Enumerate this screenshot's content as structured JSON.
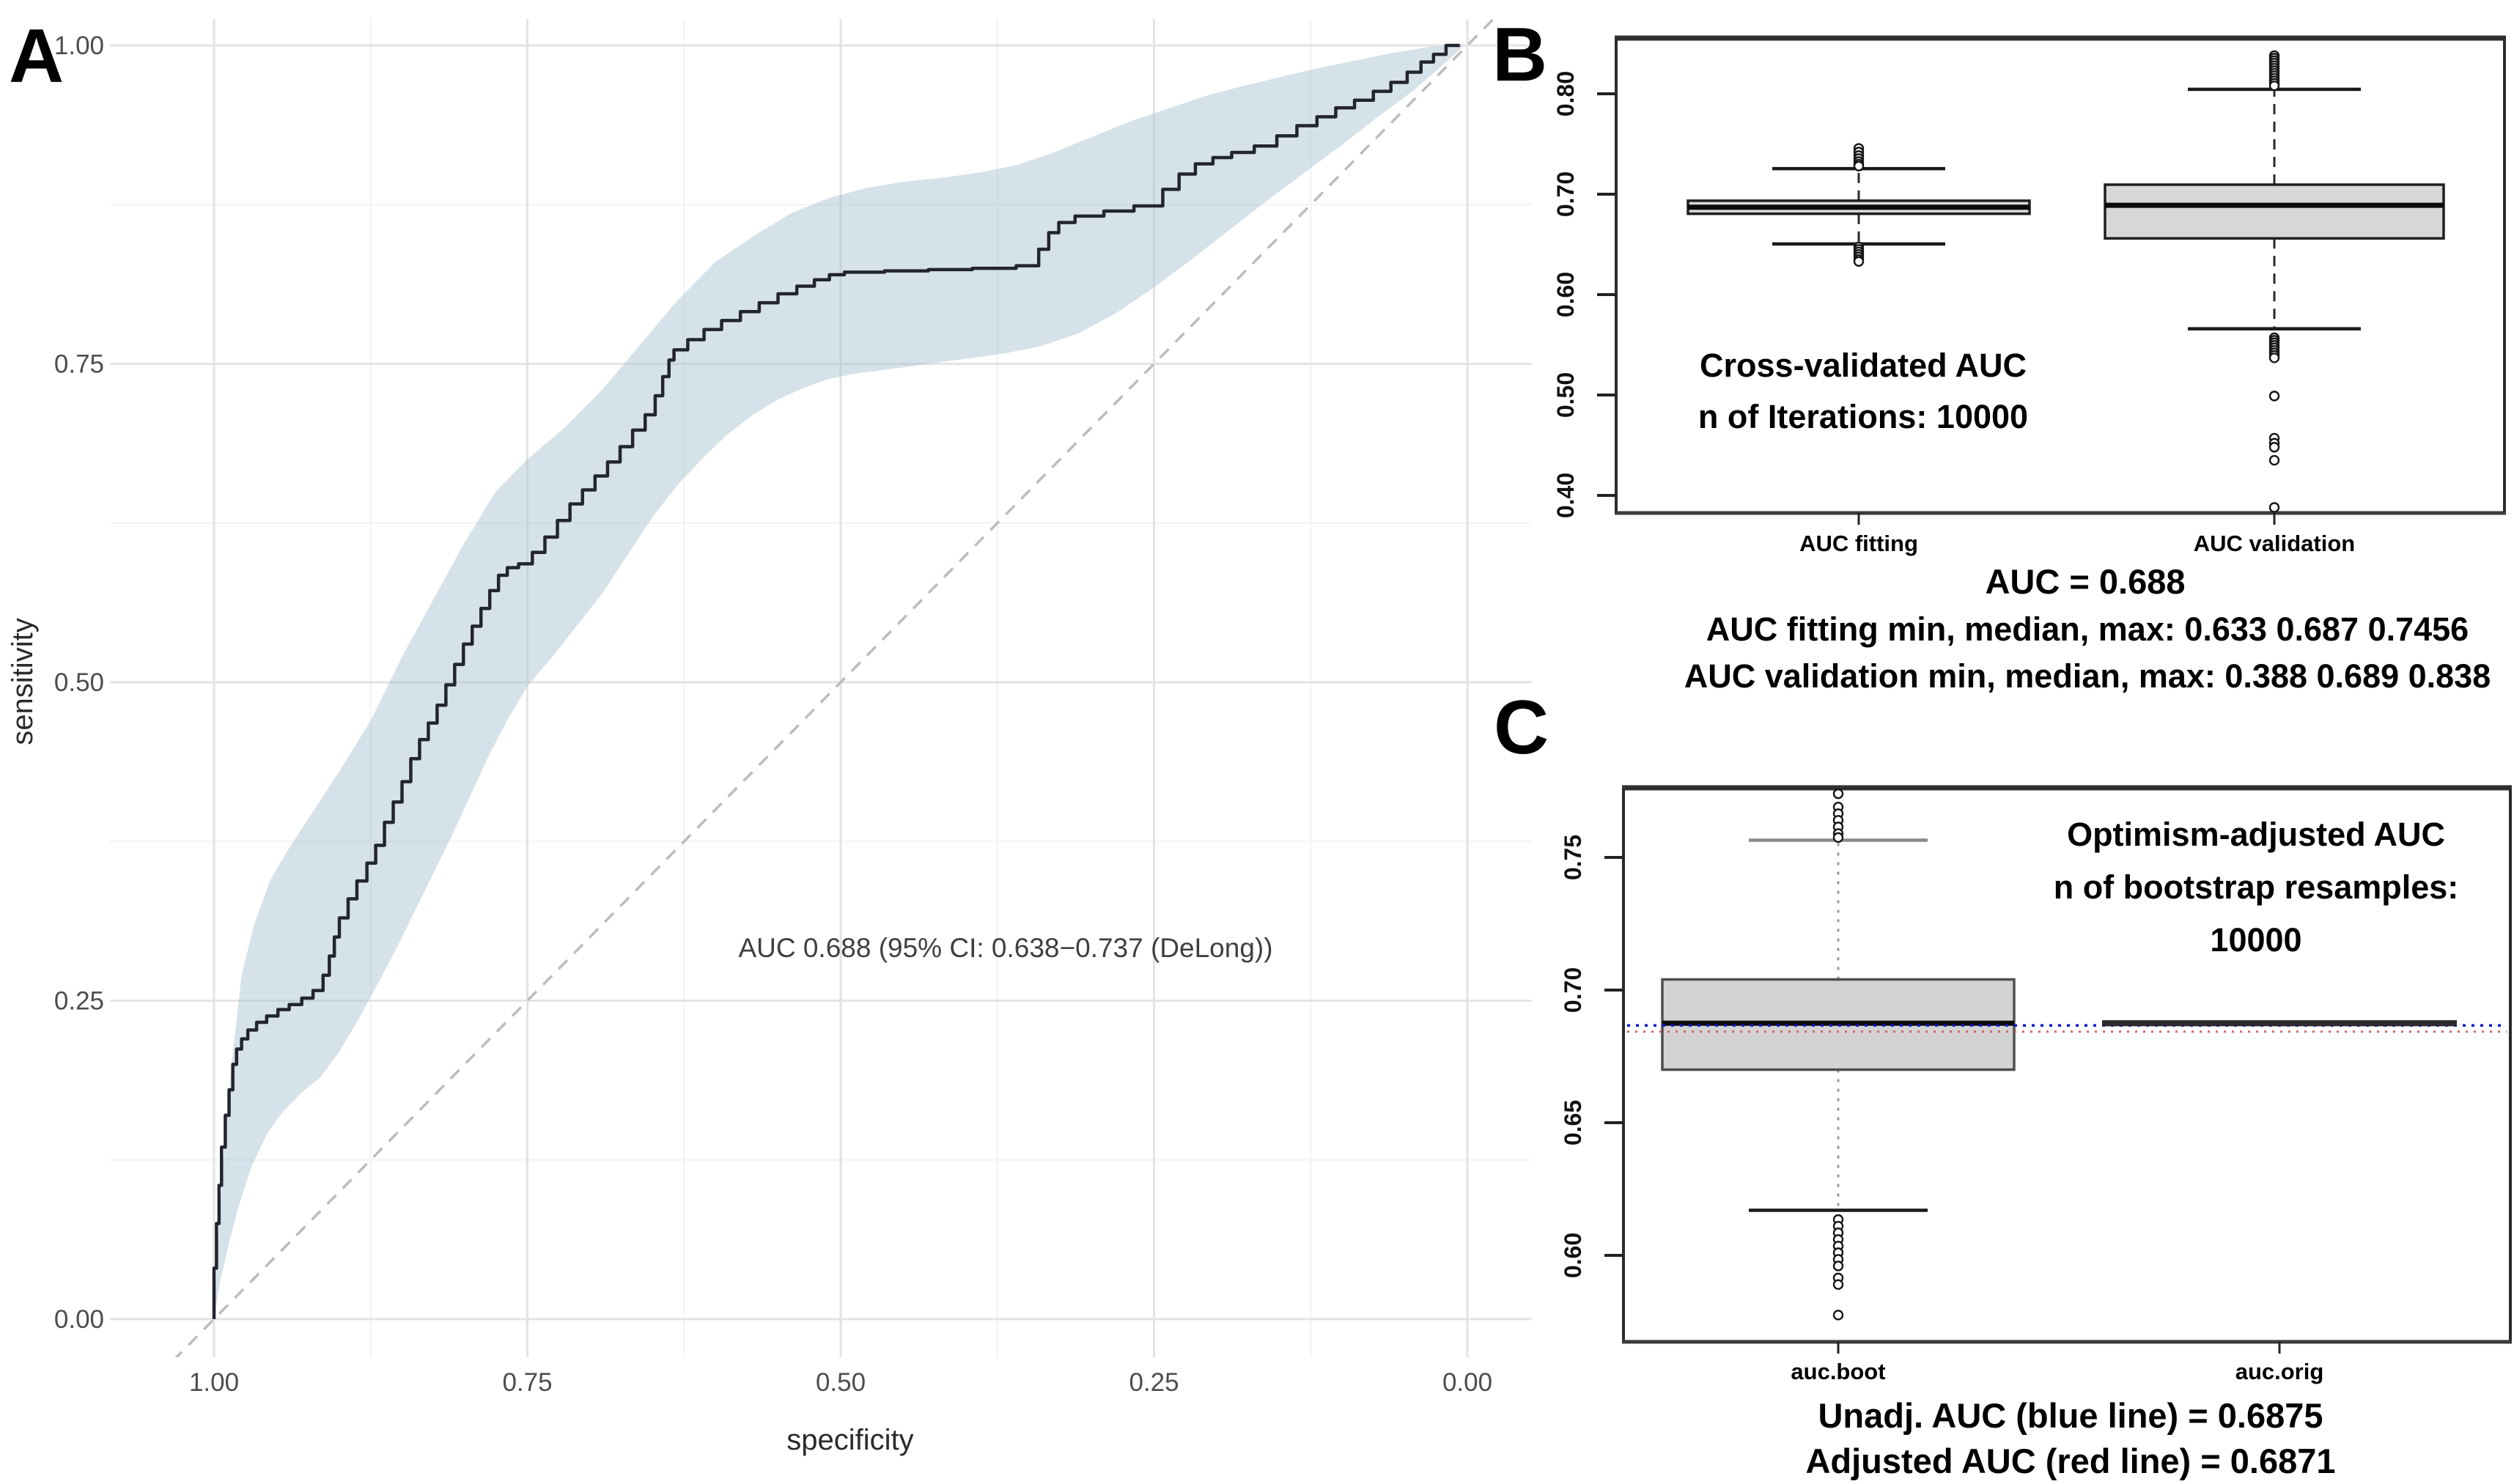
{
  "panels": {
    "a": {
      "letter": "A",
      "xlabel": "specificity",
      "ylabel": "sensitivity",
      "annotation": "AUC 0.688 (95% CI: 0.638−0.737 (DeLong))",
      "colors": {
        "band": "#a4becf",
        "roc_line": "#23252e",
        "diagonal": "#bcbcbc",
        "grid_major": "#e3e3e3",
        "grid_minor": "#f2f2f2",
        "tick_text": "#4d4d4d"
      }
    },
    "b": {
      "letter": "B",
      "note_line1": "Cross-validated AUC",
      "note_line2": "n of Iterations: 10000",
      "below_line1": "AUC = 0.688",
      "below_line2": "AUC fitting min, median, max: 0.633 0.687 0.7456",
      "below_line3": "AUC validation min, median, max: 0.388 0.689 0.838",
      "colors": {
        "box_fill": "#d7d7d7",
        "box_stroke": "#1f1f1f",
        "border": "#2b2b2b"
      }
    },
    "c": {
      "letter": "C",
      "note_line1": "Optimism-adjusted AUC",
      "note_line2": "n of bootstrap resamples:",
      "note_line3": "10000",
      "below_line1": "Unadj. AUC (blue line) = 0.6875",
      "below_line2": "Adjusted AUC (red line) = 0.6871",
      "colors": {
        "box_fill": "#d3d3d3",
        "box_stroke": "#4e4e4e",
        "blue_line": "#1515d0",
        "red_line": "#d05858",
        "border": "#2b2b2b"
      }
    }
  },
  "chart_data": [
    {
      "panel": "A",
      "type": "line",
      "title": "ROC curve with 95% confidence band",
      "xlabel": "specificity",
      "ylabel": "sensitivity",
      "x_axis": {
        "range": [
          1.0,
          0.0
        ],
        "ticks": [
          1.0,
          0.75,
          0.5,
          0.25,
          0.0
        ],
        "tick_labels": [
          "1.00",
          "0.75",
          "0.50",
          "0.25",
          "0.00"
        ],
        "minor_ticks": [
          0.875,
          0.625,
          0.375,
          0.125
        ]
      },
      "y_axis": {
        "range": [
          0.0,
          1.0
        ],
        "ticks": [
          0.0,
          0.25,
          0.5,
          0.75,
          1.0
        ],
        "tick_labels": [
          "0.00",
          "0.25",
          "0.50",
          "0.75",
          "1.00"
        ],
        "minor_ticks": [
          0.125,
          0.375,
          0.625,
          0.875
        ]
      },
      "auc": 0.688,
      "ci_low": 0.638,
      "ci_high": 0.737,
      "ci_method": "DeLong",
      "diagonal": [
        [
          1,
          0
        ],
        [
          0,
          1
        ]
      ],
      "roc_curve": [
        [
          1,
          0
        ],
        [
          0.998,
          0.04
        ],
        [
          0.996,
          0.075
        ],
        [
          0.994,
          0.105
        ],
        [
          0.991,
          0.135
        ],
        [
          0.988,
          0.16
        ],
        [
          0.985,
          0.18
        ],
        [
          0.982,
          0.2
        ],
        [
          0.978,
          0.212
        ],
        [
          0.973,
          0.22
        ],
        [
          0.966,
          0.227
        ],
        [
          0.958,
          0.233
        ],
        [
          0.949,
          0.238
        ],
        [
          0.94,
          0.243
        ],
        [
          0.93,
          0.247
        ],
        [
          0.921,
          0.252
        ],
        [
          0.913,
          0.258
        ],
        [
          0.908,
          0.27
        ],
        [
          0.904,
          0.285
        ],
        [
          0.9,
          0.3
        ],
        [
          0.893,
          0.315
        ],
        [
          0.886,
          0.33
        ],
        [
          0.878,
          0.344
        ],
        [
          0.871,
          0.358
        ],
        [
          0.864,
          0.372
        ],
        [
          0.857,
          0.39
        ],
        [
          0.85,
          0.406
        ],
        [
          0.843,
          0.422
        ],
        [
          0.836,
          0.44
        ],
        [
          0.829,
          0.455
        ],
        [
          0.822,
          0.468
        ],
        [
          0.815,
          0.482
        ],
        [
          0.808,
          0.498
        ],
        [
          0.801,
          0.514
        ],
        [
          0.794,
          0.53
        ],
        [
          0.787,
          0.544
        ],
        [
          0.78,
          0.558
        ],
        [
          0.773,
          0.572
        ],
        [
          0.766,
          0.584
        ],
        [
          0.757,
          0.59
        ],
        [
          0.746,
          0.593
        ],
        [
          0.736,
          0.602
        ],
        [
          0.726,
          0.614
        ],
        [
          0.716,
          0.627
        ],
        [
          0.706,
          0.64
        ],
        [
          0.696,
          0.651
        ],
        [
          0.686,
          0.662
        ],
        [
          0.676,
          0.673
        ],
        [
          0.666,
          0.685
        ],
        [
          0.656,
          0.698
        ],
        [
          0.648,
          0.71
        ],
        [
          0.642,
          0.725
        ],
        [
          0.637,
          0.74
        ],
        [
          0.633,
          0.753
        ],
        [
          0.622,
          0.761
        ],
        [
          0.609,
          0.769
        ],
        [
          0.595,
          0.777
        ],
        [
          0.58,
          0.784
        ],
        [
          0.565,
          0.791
        ],
        [
          0.55,
          0.798
        ],
        [
          0.535,
          0.805
        ],
        [
          0.521,
          0.811
        ],
        [
          0.509,
          0.816
        ],
        [
          0.497,
          0.82
        ],
        [
          0.465,
          0.822
        ],
        [
          0.43,
          0.823
        ],
        [
          0.395,
          0.824
        ],
        [
          0.36,
          0.825
        ],
        [
          0.342,
          0.827
        ],
        [
          0.334,
          0.84
        ],
        [
          0.326,
          0.853
        ],
        [
          0.313,
          0.861
        ],
        [
          0.29,
          0.866
        ],
        [
          0.266,
          0.87
        ],
        [
          0.243,
          0.874
        ],
        [
          0.23,
          0.887
        ],
        [
          0.217,
          0.899
        ],
        [
          0.203,
          0.907
        ],
        [
          0.188,
          0.912
        ],
        [
          0.17,
          0.916
        ],
        [
          0.152,
          0.921
        ],
        [
          0.136,
          0.929
        ],
        [
          0.12,
          0.937
        ],
        [
          0.105,
          0.944
        ],
        [
          0.09,
          0.951
        ],
        [
          0.075,
          0.957
        ],
        [
          0.061,
          0.964
        ],
        [
          0.048,
          0.971
        ],
        [
          0.037,
          0.979
        ],
        [
          0.027,
          0.987
        ],
        [
          0.017,
          0.993
        ],
        [
          0.006,
          1
        ]
      ],
      "ci_upper": [
        [
          1,
          0.005
        ],
        [
          0.993,
          0.12
        ],
        [
          0.986,
          0.2
        ],
        [
          0.978,
          0.27
        ],
        [
          0.968,
          0.31
        ],
        [
          0.955,
          0.345
        ],
        [
          0.94,
          0.37
        ],
        [
          0.92,
          0.4
        ],
        [
          0.9,
          0.43
        ],
        [
          0.875,
          0.47
        ],
        [
          0.85,
          0.52
        ],
        [
          0.825,
          0.565
        ],
        [
          0.8,
          0.61
        ],
        [
          0.775,
          0.65
        ],
        [
          0.75,
          0.675
        ],
        [
          0.72,
          0.7
        ],
        [
          0.69,
          0.73
        ],
        [
          0.66,
          0.765
        ],
        [
          0.63,
          0.8
        ],
        [
          0.6,
          0.83
        ],
        [
          0.57,
          0.85
        ],
        [
          0.54,
          0.868
        ],
        [
          0.51,
          0.88
        ],
        [
          0.48,
          0.888
        ],
        [
          0.45,
          0.893
        ],
        [
          0.42,
          0.896
        ],
        [
          0.39,
          0.9
        ],
        [
          0.36,
          0.906
        ],
        [
          0.33,
          0.916
        ],
        [
          0.3,
          0.928
        ],
        [
          0.27,
          0.94
        ],
        [
          0.24,
          0.95
        ],
        [
          0.21,
          0.96
        ],
        [
          0.18,
          0.968
        ],
        [
          0.15,
          0.975
        ],
        [
          0.12,
          0.982
        ],
        [
          0.09,
          0.988
        ],
        [
          0.06,
          0.994
        ],
        [
          0.03,
          0.999
        ],
        [
          0.01,
          1
        ]
      ],
      "ci_lower": [
        [
          1,
          0
        ],
        [
          0.995,
          0.03
        ],
        [
          0.988,
          0.06
        ],
        [
          0.98,
          0.09
        ],
        [
          0.97,
          0.12
        ],
        [
          0.958,
          0.145
        ],
        [
          0.945,
          0.163
        ],
        [
          0.93,
          0.178
        ],
        [
          0.915,
          0.19
        ],
        [
          0.9,
          0.21
        ],
        [
          0.885,
          0.235
        ],
        [
          0.87,
          0.262
        ],
        [
          0.855,
          0.29
        ],
        [
          0.84,
          0.32
        ],
        [
          0.825,
          0.35
        ],
        [
          0.81,
          0.38
        ],
        [
          0.795,
          0.412
        ],
        [
          0.78,
          0.444
        ],
        [
          0.765,
          0.472
        ],
        [
          0.75,
          0.497
        ],
        [
          0.73,
          0.52
        ],
        [
          0.71,
          0.545
        ],
        [
          0.69,
          0.57
        ],
        [
          0.67,
          0.6
        ],
        [
          0.65,
          0.63
        ],
        [
          0.63,
          0.655
        ],
        [
          0.61,
          0.676
        ],
        [
          0.59,
          0.695
        ],
        [
          0.57,
          0.71
        ],
        [
          0.55,
          0.722
        ],
        [
          0.53,
          0.731
        ],
        [
          0.51,
          0.738
        ],
        [
          0.49,
          0.742
        ],
        [
          0.46,
          0.746
        ],
        [
          0.43,
          0.75
        ],
        [
          0.4,
          0.754
        ],
        [
          0.37,
          0.758
        ],
        [
          0.34,
          0.764
        ],
        [
          0.31,
          0.774
        ],
        [
          0.28,
          0.79
        ],
        [
          0.25,
          0.81
        ],
        [
          0.22,
          0.832
        ],
        [
          0.19,
          0.855
        ],
        [
          0.16,
          0.878
        ],
        [
          0.13,
          0.9
        ],
        [
          0.1,
          0.922
        ],
        [
          0.07,
          0.945
        ],
        [
          0.045,
          0.963
        ],
        [
          0.025,
          0.98
        ],
        [
          0.01,
          0.993
        ],
        [
          0.003,
          1
        ]
      ]
    },
    {
      "panel": "B",
      "type": "boxplot",
      "title": "Cross-validated AUC, n of Iterations: 10000",
      "categories": [
        "AUC fitting",
        "AUC validation"
      ],
      "y_ticks": [
        0.8,
        0.7,
        0.6,
        0.5,
        0.4
      ],
      "y_tick_labels": [
        "0.80",
        "0.70",
        "0.60",
        "0.50",
        "0.40"
      ],
      "ylim": [
        0.382,
        0.855
      ],
      "summary": {
        "auc": 0.688,
        "fitting_min_median_max": [
          0.633,
          0.687,
          0.7456
        ],
        "validation_min_median_max": [
          0.388,
          0.689,
          0.838
        ]
      },
      "boxes": [
        {
          "label": "AUC fitting",
          "q1": 0.6805,
          "median": 0.687,
          "q3": 0.6935,
          "whisker_low": 0.6505,
          "whisker_high": 0.7255,
          "outliers_high": [
            0.7456,
            0.742,
            0.7385,
            0.7355,
            0.7325,
            0.73,
            0.728
          ],
          "outliers_low": [
            0.6475,
            0.645,
            0.6425,
            0.64,
            0.6375,
            0.635,
            0.633
          ]
        },
        {
          "label": "AUC validation",
          "q1": 0.656,
          "median": 0.689,
          "q3": 0.7095,
          "whisker_low": 0.566,
          "whisker_high": 0.8045,
          "outliers_high": [
            0.838,
            0.8355,
            0.833,
            0.8305,
            0.828,
            0.8255,
            0.823,
            0.8205,
            0.818,
            0.8155,
            0.813,
            0.8105,
            0.808
          ],
          "outliers_low": [
            0.557,
            0.5545,
            0.552,
            0.5495,
            0.547,
            0.5445,
            0.542,
            0.5395,
            0.537,
            0.499,
            0.457,
            0.452,
            0.448,
            0.435,
            0.388
          ]
        }
      ]
    },
    {
      "panel": "C",
      "type": "boxplot",
      "title": "Optimism-adjusted AUC, n of bootstrap resamples: 10000",
      "categories": [
        "auc.boot",
        "auc.orig"
      ],
      "y_ticks": [
        0.75,
        0.7,
        0.65,
        0.6
      ],
      "y_tick_labels": [
        "0.75",
        "0.70",
        "0.65",
        "0.60"
      ],
      "ylim": [
        0.567,
        0.776
      ],
      "unadjusted_auc": 0.6875,
      "adjusted_auc": 0.6871,
      "boxes": [
        {
          "label": "auc.boot",
          "q1": 0.67,
          "median": 0.6875,
          "q3": 0.704,
          "whisker_low": 0.617,
          "whisker_high": 0.7565,
          "outliers_high": [
            0.774,
            0.769,
            0.7665,
            0.764,
            0.7615,
            0.759,
            0.7575
          ],
          "outliers_low": [
            0.6135,
            0.611,
            0.6085,
            0.606,
            0.6035,
            0.601,
            0.5985,
            0.596,
            0.5915,
            0.589,
            0.5775
          ]
        },
        {
          "label": "auc.orig",
          "value": 0.6875
        }
      ],
      "ref_lines": [
        {
          "color": "blue",
          "value": 0.6875,
          "label": "Unadj. AUC"
        },
        {
          "color": "red",
          "value": 0.6871,
          "label": "Adjusted AUC"
        }
      ]
    }
  ]
}
